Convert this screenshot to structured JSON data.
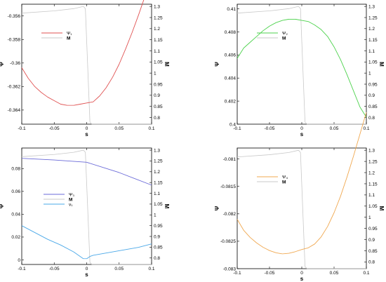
{
  "chart_data": [
    {
      "type": "line",
      "xlabel": "s",
      "ylabel": "Ψ",
      "y2label": "M",
      "xlim": [
        -0.1,
        0.1
      ],
      "ylim": [
        -0.3652,
        -0.355
      ],
      "y2lim": [
        0.77,
        1.31
      ],
      "xticks": [
        -0.1,
        -0.05,
        0,
        0.05,
        0.1
      ],
      "xtick_labels": [
        "-0.1",
        "-0.05",
        "0",
        "0.05",
        "0.1"
      ],
      "yticks": [
        -0.356,
        -0.358,
        -0.36,
        -0.362,
        -0.364
      ],
      "ytick_labels": [
        "-0.356",
        "-0.358",
        "-0.36",
        "-0.362",
        "-0.364"
      ],
      "y2ticks": [
        1.3,
        1.25,
        1.2,
        1.15,
        1.1,
        1.05,
        1,
        0.95,
        0.9,
        0.85,
        0.8
      ],
      "y2tick_labels": [
        "1.3",
        "1.25",
        "1.2",
        "1.15",
        "1.1",
        "1.05",
        "1",
        "0.95",
        "0.9",
        "0.85",
        "0.8"
      ],
      "legend_position": "upper-left",
      "series": [
        {
          "name": "Ψ₁",
          "axis": "left",
          "color": "#e05252",
          "x": [
            -0.1,
            -0.09,
            -0.08,
            -0.07,
            -0.06,
            -0.05,
            -0.04,
            -0.03,
            -0.02,
            -0.01,
            0,
            0.01,
            0.02,
            0.03,
            0.04,
            0.05,
            0.06,
            0.07,
            0.08,
            0.09,
            0.1
          ],
          "y": [
            -0.3604,
            -0.3613,
            -0.362,
            -0.3625,
            -0.3629,
            -0.3632,
            -0.3635,
            -0.3636,
            -0.3636,
            -0.3635,
            -0.3634,
            -0.3633,
            -0.3628,
            -0.3621,
            -0.3612,
            -0.3601,
            -0.3588,
            -0.3574,
            -0.3559,
            -0.3543,
            -0.3525
          ]
        },
        {
          "name": "M",
          "axis": "right",
          "color": "#c8c8c8",
          "x": [
            -0.1,
            -0.05,
            -0.02,
            -0.005,
            -0.002,
            0.005,
            0.008,
            0.1
          ],
          "y": [
            1.27,
            1.28,
            1.29,
            1.3,
            1.29,
            0.78,
            0.77,
            0.77
          ]
        }
      ]
    },
    {
      "type": "line",
      "xlabel": "s",
      "ylabel": "Ψ",
      "y2label": "M",
      "xlim": [
        -0.1,
        0.1
      ],
      "ylim": [
        0.4,
        0.4104
      ],
      "y2lim": [
        0.77,
        1.31
      ],
      "xticks": [
        -0.1,
        -0.05,
        0,
        0.05,
        0.1
      ],
      "xtick_labels": [
        "-0.1",
        "-0.05",
        "0",
        "0.05",
        "0.1"
      ],
      "yticks": [
        0.41,
        0.408,
        0.406,
        0.404,
        0.402,
        0.4
      ],
      "ytick_labels": [
        "0.41",
        "0.408",
        "0.406",
        "0.404",
        "0.402",
        "0.4"
      ],
      "y2ticks": [
        1.3,
        1.25,
        1.2,
        1.15,
        1.1,
        1.05,
        1,
        0.95,
        0.9,
        0.85,
        0.8
      ],
      "y2tick_labels": [
        "1.3",
        "1.25",
        "1.2",
        "1.15",
        "1.1",
        "1.05",
        "1",
        "0.95",
        "0.9",
        "0.85",
        "0.8"
      ],
      "legend_position": "upper-left",
      "series": [
        {
          "name": "Ψ₂",
          "axis": "left",
          "color": "#4cd24c",
          "x": [
            -0.1,
            -0.09,
            -0.08,
            -0.07,
            -0.06,
            -0.05,
            -0.04,
            -0.03,
            -0.02,
            -0.01,
            0,
            0.01,
            0.02,
            0.03,
            0.04,
            0.05,
            0.06,
            0.07,
            0.08,
            0.09,
            0.1
          ],
          "y": [
            0.4057,
            0.4066,
            0.4071,
            0.4076,
            0.4081,
            0.4085,
            0.4088,
            0.409,
            0.4091,
            0.4091,
            0.409,
            0.4089,
            0.4086,
            0.4082,
            0.4076,
            0.4067,
            0.4056,
            0.4043,
            0.4029,
            0.4015,
            0.4006
          ]
        },
        {
          "name": "M",
          "axis": "right",
          "color": "#c8c8c8",
          "x": [
            -0.1,
            -0.05,
            -0.02,
            -0.005,
            -0.002,
            0.005,
            0.008,
            0.1
          ],
          "y": [
            1.27,
            1.28,
            1.29,
            1.3,
            1.29,
            0.78,
            0.77,
            0.77
          ]
        }
      ]
    },
    {
      "type": "line",
      "xlabel": "s",
      "ylabel": "Ψ",
      "y2label": "M",
      "xlim": [
        -0.1,
        0.1
      ],
      "ylim": [
        -0.004,
        0.098
      ],
      "y2lim": [
        0.77,
        1.31
      ],
      "xticks": [
        -0.1,
        -0.05,
        0,
        0.05,
        0.1
      ],
      "xtick_labels": [
        "-0.1",
        "-0.05",
        "0",
        "0.05",
        "0.1"
      ],
      "yticks": [
        0.08,
        0.06,
        0.04,
        0.02,
        0
      ],
      "ytick_labels": [
        "0.08",
        "0.06",
        "0.04",
        "0.02",
        "0"
      ],
      "y2ticks": [
        1.3,
        1.25,
        1.2,
        1.15,
        1.1,
        1.05,
        1,
        0.95,
        0.9,
        0.85,
        0.8
      ],
      "y2tick_labels": [
        "1.3",
        "1.25",
        "1.2",
        "1.15",
        "1.1",
        "1.05",
        "1",
        "0.95",
        "0.9",
        "0.85",
        "0.8"
      ],
      "legend_position": "center-left",
      "series": [
        {
          "name": "Ψ₃",
          "axis": "left",
          "color": "#6a6ad8",
          "x": [
            -0.1,
            -0.05,
            0,
            0.05,
            0.1
          ],
          "y": [
            0.089,
            0.0875,
            0.0855,
            0.0765,
            0.0655
          ]
        },
        {
          "name": "M",
          "axis": "right",
          "color": "#c8c8c8",
          "x": [
            -0.1,
            -0.05,
            -0.02,
            -0.005,
            -0.002,
            0.005,
            0.008,
            0.1
          ],
          "y": [
            1.27,
            1.28,
            1.29,
            1.3,
            1.29,
            0.78,
            0.77,
            0.77
          ]
        },
        {
          "name": "v₁",
          "axis": "left",
          "color": "#4aa8e8",
          "x": [
            -0.1,
            -0.08,
            -0.06,
            -0.04,
            -0.02,
            -0.01,
            -0.005,
            0,
            0.005,
            0.01,
            0.02,
            0.04,
            0.06,
            0.08,
            0.1
          ],
          "y": [
            0.03,
            0.024,
            0.018,
            0.013,
            0.007,
            0.003,
            0.001,
            0.001,
            0.003,
            0.004,
            0.005,
            0.007,
            0.009,
            0.011,
            0.014
          ]
        }
      ]
    },
    {
      "type": "line",
      "xlabel": "s",
      "ylabel": "Ψ",
      "y2label": "M",
      "xlim": [
        -0.1,
        0.1
      ],
      "ylim": [
        -0.083,
        -0.0808
      ],
      "y2lim": [
        0.77,
        1.31
      ],
      "xticks": [
        -0.1,
        -0.05,
        0,
        0.05,
        0.1
      ],
      "xtick_labels": [
        "-0.1",
        "-0.05",
        "0",
        "0.05",
        "0.1"
      ],
      "yticks": [
        -0.081,
        -0.0815,
        -0.082,
        -0.0825,
        -0.083
      ],
      "ytick_labels": [
        "-0.081",
        "-0.0815",
        "-0.082",
        "-0.0825",
        "-0.083"
      ],
      "y2ticks": [
        1.3,
        1.25,
        1.2,
        1.15,
        1.1,
        1.05,
        1,
        0.95,
        0.9,
        0.85,
        0.8
      ],
      "y2tick_labels": [
        "1.3",
        "1.25",
        "1.2",
        "1.15",
        "1.1",
        "1.05",
        "1",
        "0.95",
        "0.9",
        "0.85",
        "0.8"
      ],
      "legend_position": "upper-left",
      "series": [
        {
          "name": "Ψ₄",
          "axis": "left",
          "color": "#f0a850",
          "x": [
            -0.1,
            -0.09,
            -0.08,
            -0.07,
            -0.06,
            -0.05,
            -0.04,
            -0.03,
            -0.02,
            -0.01,
            0,
            0.01,
            0.02,
            0.03,
            0.04,
            0.05,
            0.06,
            0.07,
            0.08,
            0.09,
            0.1
          ],
          "y": [
            -0.0821,
            -0.0823,
            -0.08243,
            -0.08253,
            -0.08261,
            -0.08267,
            -0.08271,
            -0.08273,
            -0.08272,
            -0.08269,
            -0.08265,
            -0.08262,
            -0.08255,
            -0.08242,
            -0.08223,
            -0.08198,
            -0.08168,
            -0.08133,
            -0.08095,
            -0.08055,
            -0.08015
          ]
        },
        {
          "name": "M",
          "axis": "right",
          "color": "#c8c8c8",
          "x": [
            -0.1,
            -0.05,
            -0.02,
            -0.005,
            -0.002,
            0.005,
            0.008,
            0.1
          ],
          "y": [
            1.27,
            1.28,
            1.29,
            1.3,
            1.29,
            0.78,
            0.77,
            0.77
          ]
        }
      ]
    }
  ]
}
